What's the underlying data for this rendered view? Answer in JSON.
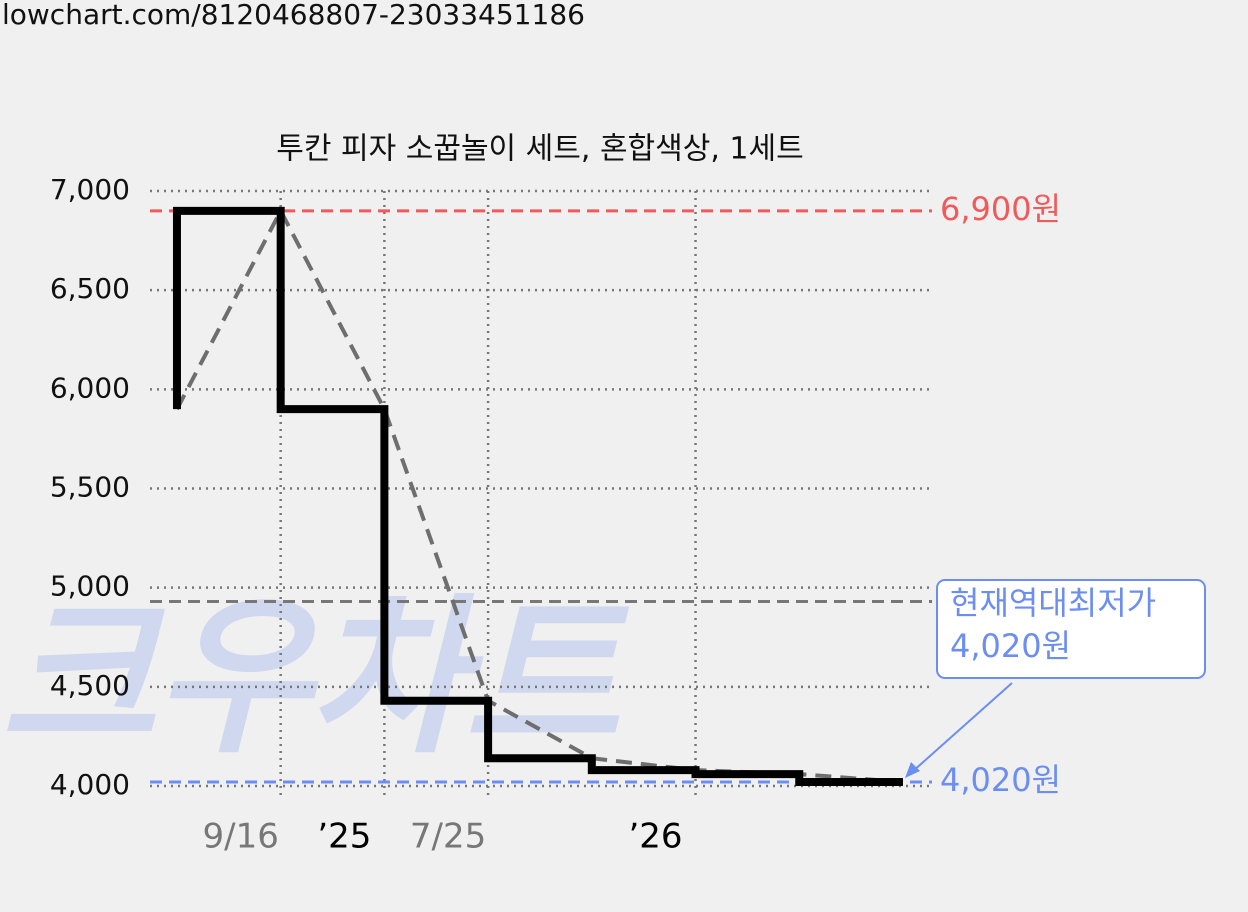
{
  "url": "lowchart.com/8120468807-23033451186",
  "chart_data": {
    "type": "step",
    "title": "투칸 피자 소꿉놀이 세트, 혼합색상, 1세트",
    "watermark": "크우차트",
    "x": [
      0,
      1,
      2,
      3,
      4,
      5,
      6,
      7
    ],
    "values": [
      5900,
      6900,
      5900,
      4430,
      4140,
      4080,
      4060,
      4020
    ],
    "color": "#000000",
    "trend_color": "#6e6e6e",
    "xlim": [
      -0.26,
      7.28
    ],
    "xticks": [
      {
        "value": 1,
        "label": "9/16",
        "color": "#777777"
      },
      {
        "value": 2,
        "label": "’25",
        "color": "#000000"
      },
      {
        "value": 3,
        "label": "7/25",
        "color": "#777777"
      },
      {
        "value": 5,
        "label": "’26",
        "color": "#000000"
      }
    ],
    "ylim": [
      4000,
      7000
    ],
    "yticks": [
      {
        "value": 4000,
        "label": "4,000"
      },
      {
        "value": 4500,
        "label": "4,500"
      },
      {
        "value": 5000,
        "label": "5,000"
      },
      {
        "value": 5500,
        "label": "5,500"
      },
      {
        "value": 6000,
        "label": "6,000"
      },
      {
        "value": 6500,
        "label": "6,500"
      },
      {
        "value": 7000,
        "label": "7,000"
      }
    ],
    "grid": true,
    "ref_lines": [
      {
        "value": 6900,
        "label": "6,900원",
        "color": "#f05a5a"
      },
      {
        "value": 4930,
        "color": "#777777"
      },
      {
        "value": 4020,
        "label": "4,020원",
        "color": "#6b8ef0"
      }
    ],
    "annotation": {
      "lines": [
        "현재역대최저가",
        "4,020원"
      ],
      "color": "#6b8ef0"
    }
  }
}
